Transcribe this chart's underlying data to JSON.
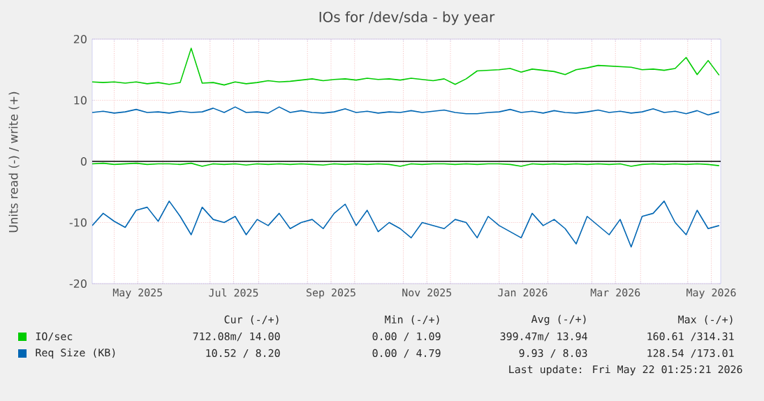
{
  "chart_data": {
    "type": "line",
    "title": "IOs for /dev/sda - by year",
    "ylabel": "Units read (-) / write (+)",
    "x": [
      "2025-04-17",
      "2025-04-24",
      "2025-05-01",
      "2025-05-08",
      "2025-05-15",
      "2025-05-22",
      "2025-05-29",
      "2025-06-05",
      "2025-06-12",
      "2025-06-19",
      "2025-06-26",
      "2025-07-03",
      "2025-07-10",
      "2025-07-17",
      "2025-07-24",
      "2025-07-31",
      "2025-08-07",
      "2025-08-14",
      "2025-08-21",
      "2025-08-28",
      "2025-09-04",
      "2025-09-11",
      "2025-09-18",
      "2025-09-25",
      "2025-10-02",
      "2025-10-09",
      "2025-10-16",
      "2025-10-23",
      "2025-10-30",
      "2025-11-06",
      "2025-11-13",
      "2025-11-20",
      "2025-11-27",
      "2025-12-04",
      "2025-12-11",
      "2025-12-18",
      "2025-12-25",
      "2026-01-01",
      "2026-01-08",
      "2026-01-15",
      "2026-01-22",
      "2026-01-29",
      "2026-02-05",
      "2026-02-12",
      "2026-02-19",
      "2026-02-26",
      "2026-03-05",
      "2026-03-12",
      "2026-03-19",
      "2026-03-26",
      "2026-04-02",
      "2026-04-09",
      "2026-04-16",
      "2026-04-23",
      "2026-04-30",
      "2026-05-07",
      "2026-05-14",
      "2026-05-21"
    ],
    "series": [
      {
        "name": "IO/sec",
        "color": "#00cc00",
        "values": [
          13.0,
          12.9,
          13.0,
          12.8,
          13.0,
          12.7,
          12.9,
          12.6,
          12.9,
          18.5,
          12.8,
          12.9,
          12.5,
          13.0,
          12.7,
          12.9,
          13.2,
          13.0,
          13.1,
          13.3,
          13.5,
          13.2,
          13.4,
          13.5,
          13.3,
          13.6,
          13.4,
          13.5,
          13.3,
          13.6,
          13.4,
          13.2,
          13.5,
          12.6,
          13.5,
          14.8,
          14.9,
          15.0,
          15.2,
          14.6,
          15.1,
          14.9,
          14.7,
          14.2,
          15.0,
          15.3,
          15.7,
          15.6,
          15.5,
          15.4,
          15.0,
          15.1,
          14.9,
          15.2,
          17.0,
          14.2,
          16.5,
          14.1
        ]
      },
      {
        "color": "#00cc00",
        "values": [
          -0.4,
          -0.3,
          -0.5,
          -0.4,
          -0.3,
          -0.5,
          -0.4,
          -0.4,
          -0.5,
          -0.3,
          -0.8,
          -0.4,
          -0.5,
          -0.4,
          -0.6,
          -0.4,
          -0.5,
          -0.4,
          -0.5,
          -0.4,
          -0.5,
          -0.6,
          -0.4,
          -0.5,
          -0.4,
          -0.5,
          -0.4,
          -0.5,
          -0.8,
          -0.4,
          -0.5,
          -0.4,
          -0.4,
          -0.5,
          -0.4,
          -0.5,
          -0.4,
          -0.4,
          -0.5,
          -0.8,
          -0.4,
          -0.5,
          -0.4,
          -0.5,
          -0.4,
          -0.5,
          -0.4,
          -0.5,
          -0.4,
          -0.8,
          -0.5,
          -0.4,
          -0.5,
          -0.4,
          -0.5,
          -0.4,
          -0.5,
          -0.7
        ]
      },
      {
        "name": "Req Size (KB)",
        "color": "#0066b3",
        "values": [
          8.0,
          8.2,
          7.9,
          8.1,
          8.5,
          8.0,
          8.1,
          7.9,
          8.2,
          8.0,
          8.1,
          8.7,
          8.0,
          8.9,
          8.0,
          8.1,
          7.9,
          8.9,
          8.0,
          8.3,
          8.0,
          7.9,
          8.1,
          8.6,
          8.0,
          8.2,
          7.9,
          8.1,
          8.0,
          8.3,
          8.0,
          8.2,
          8.4,
          8.0,
          7.8,
          7.8,
          8.0,
          8.1,
          8.5,
          8.0,
          8.2,
          7.9,
          8.3,
          8.0,
          7.9,
          8.1,
          8.4,
          8.0,
          8.2,
          7.9,
          8.1,
          8.6,
          8.0,
          8.2,
          7.8,
          8.3,
          7.6,
          8.1
        ]
      },
      {
        "color": "#0066b3",
        "values": [
          -10.5,
          -8.5,
          -9.8,
          -10.8,
          -8.0,
          -7.5,
          -9.8,
          -6.5,
          -9.0,
          -12.0,
          -7.5,
          -9.5,
          -10.0,
          -9.0,
          -12.0,
          -9.5,
          -10.5,
          -8.5,
          -11.0,
          -10.0,
          -9.5,
          -11.0,
          -8.5,
          -7.0,
          -10.5,
          -8.0,
          -11.5,
          -10.0,
          -11.0,
          -12.5,
          -10.0,
          -10.5,
          -11.0,
          -9.5,
          -10.0,
          -12.5,
          -9.0,
          -10.5,
          -11.5,
          -12.5,
          -8.5,
          -10.5,
          -9.5,
          -11.0,
          -13.5,
          -9.0,
          -10.5,
          -12.0,
          -9.5,
          -14.0,
          -9.0,
          -8.5,
          -6.5,
          -10.0,
          -12.0,
          -8.0,
          -11.0,
          -10.5
        ]
      }
    ],
    "xlim": [
      "2025-04-17",
      "2026-05-22"
    ],
    "xticks": [
      {
        "value": "2025-05-01",
        "label": null
      },
      {
        "value": "2025-05-16",
        "label": "May 2025"
      },
      {
        "value": "2025-06-01",
        "label": null
      },
      {
        "value": "2025-07-01",
        "label": null
      },
      {
        "value": "2025-07-16",
        "label": "Jul 2025"
      },
      {
        "value": "2025-08-01",
        "label": null
      },
      {
        "value": "2025-09-01",
        "label": null
      },
      {
        "value": "2025-09-16",
        "label": "Sep 2025"
      },
      {
        "value": "2025-10-01",
        "label": null
      },
      {
        "value": "2025-11-01",
        "label": null
      },
      {
        "value": "2025-11-16",
        "label": "Nov 2025"
      },
      {
        "value": "2025-12-01",
        "label": null
      },
      {
        "value": "2026-01-01",
        "label": null
      },
      {
        "value": "2026-01-16",
        "label": "Jan 2026"
      },
      {
        "value": "2026-02-01",
        "label": null
      },
      {
        "value": "2026-03-01",
        "label": null
      },
      {
        "value": "2026-03-16",
        "label": "Mar 2026"
      },
      {
        "value": "2026-04-01",
        "label": null
      },
      {
        "value": "2026-05-01",
        "label": null
      },
      {
        "value": "2026-05-16",
        "label": "May 2026"
      }
    ],
    "ylim": [
      -20,
      20
    ],
    "yticks": [
      -20,
      -10,
      0,
      10,
      20
    ],
    "grid": true,
    "legend": "bottom",
    "ref_lines": [
      {
        "axis": "y",
        "value": 0,
        "color": "#000000"
      }
    ],
    "annotations": [
      "Cur (-/+)",
      "Min (-/+)",
      "Avg (-/+)",
      "Max (-/+)",
      "712.08m/ 14.00",
      "0.00 /  1.09",
      "399.47m/ 13.94",
      "160.61 /314.31",
      "10.52 /  8.20",
      "0.00 /  4.79",
      "9.93 /  8.03",
      "128.54 /173.01",
      "Last update: Fri May 22 01:25:21 2026"
    ]
  }
}
